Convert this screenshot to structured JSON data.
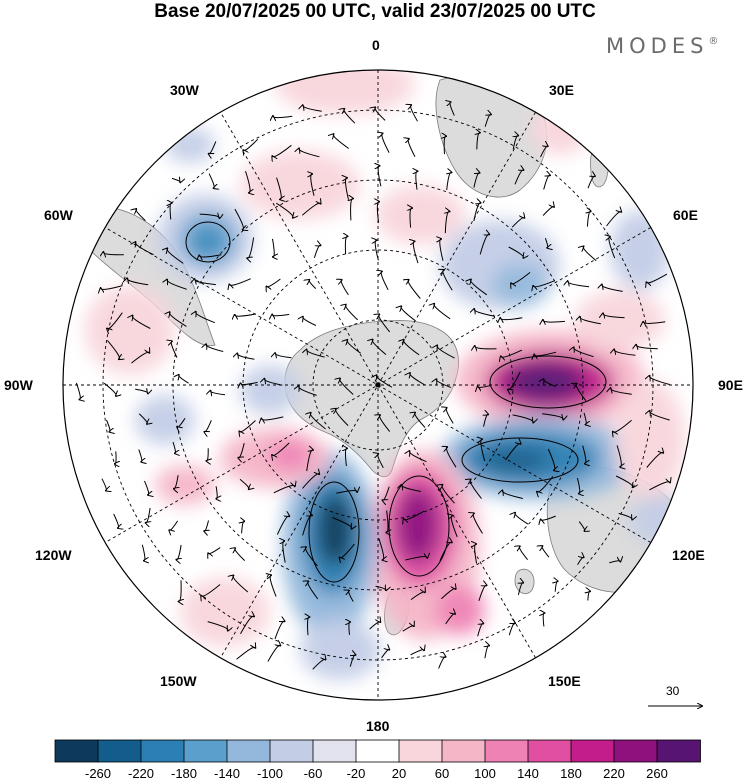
{
  "title": "Base 20/07/2025 00 UTC, valid 23/07/2025 00 UTC",
  "brand": "MODES",
  "brand_mark": "®",
  "longitude_labels": {
    "lon_0": "0",
    "lon_30e": "30E",
    "lon_60e": "60E",
    "lon_90e": "90E",
    "lon_120e": "120E",
    "lon_150e": "150E",
    "lon_180": "180",
    "lon_150w": "150W",
    "lon_120w": "120W",
    "lon_90w": "90W",
    "lon_60w": "60W",
    "lon_30w": "30W"
  },
  "reference_vector": "30",
  "colorbar": {
    "ticks": [
      "-260",
      "-220",
      "-180",
      "-140",
      "-100",
      "-60",
      "-20",
      "20",
      "60",
      "100",
      "140",
      "180",
      "220",
      "260"
    ],
    "colors": [
      "#0d3a5c",
      "#135d8c",
      "#2b7fb4",
      "#5b9fcc",
      "#93b8dc",
      "#c3cde6",
      "#e3e3f0",
      "#ffffff",
      "#f8d6dc",
      "#f5b6c8",
      "#ef82b4",
      "#e04fa2",
      "#c21d8a",
      "#8e117e",
      "#571472"
    ]
  },
  "colors": {
    "ocean_background": "#ffffff",
    "land": "#dcdcdc",
    "grid": "#000000"
  }
}
